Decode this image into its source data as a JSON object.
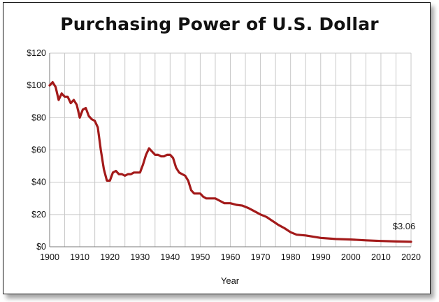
{
  "chart_data": {
    "type": "line",
    "title": "Purchasing Power of U.S. Dollar",
    "xlabel": "Year",
    "ylabel": "",
    "xlim": [
      1900,
      2020
    ],
    "ylim": [
      0,
      120
    ],
    "x_ticks": [
      "1900",
      "1910",
      "1920",
      "1930",
      "1940",
      "1950",
      "1960",
      "1970",
      "1980",
      "1990",
      "2000",
      "2010",
      "2020"
    ],
    "y_ticks": [
      "$0",
      "$20",
      "$40",
      "$60",
      "$80",
      "$100",
      "$120"
    ],
    "grid": true,
    "legend": "none",
    "series_color": "#a31a1a",
    "annotation": {
      "text": "$3.06",
      "x": 2020,
      "y": 3.06
    },
    "series": [
      {
        "x": [
          1900,
          1901,
          1902,
          1903,
          1904,
          1905,
          1906,
          1907,
          1908,
          1909,
          1910,
          1911,
          1912,
          1913,
          1914,
          1915,
          1916,
          1917,
          1918,
          1919,
          1920,
          1921,
          1922,
          1923,
          1924,
          1925,
          1926,
          1927,
          1928,
          1929,
          1930,
          1931,
          1932,
          1933,
          1934,
          1935,
          1936,
          1937,
          1938,
          1939,
          1940,
          1941,
          1942,
          1943,
          1944,
          1945,
          1946,
          1947,
          1948,
          1949,
          1950,
          1951,
          1952,
          1953,
          1954,
          1955,
          1956,
          1957,
          1958,
          1959,
          1960,
          1962,
          1964,
          1966,
          1968,
          1970,
          1972,
          1974,
          1976,
          1978,
          1980,
          1982,
          1985,
          1990,
          1995,
          2000,
          2005,
          2010,
          2015,
          2020
        ],
        "values": [
          100,
          102,
          99,
          91,
          95,
          93,
          93,
          89,
          91,
          88,
          80,
          85,
          86,
          81,
          79,
          78,
          74,
          60,
          48,
          41,
          41,
          46,
          47,
          45,
          45,
          44,
          45,
          45,
          46,
          46,
          46,
          51,
          57,
          61,
          59,
          57,
          57,
          56,
          56,
          57,
          57,
          55,
          49,
          46,
          45,
          44,
          41,
          35,
          33,
          33,
          33,
          31,
          30,
          30,
          30,
          30,
          29,
          28,
          27,
          27,
          27,
          26,
          25.5,
          24,
          22,
          20,
          18.5,
          16,
          13.5,
          11.5,
          9,
          7.5,
          7,
          5.5,
          4.8,
          4.5,
          4,
          3.6,
          3.3,
          3.06
        ]
      }
    ]
  }
}
